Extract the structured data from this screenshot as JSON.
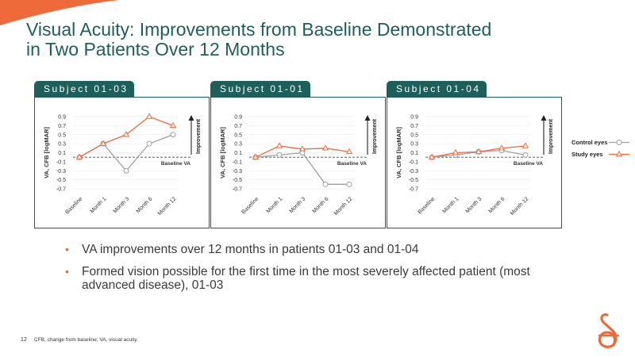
{
  "title_lines": [
    "Visual Acuity: Improvements from Baseline Demonstrated",
    "in Two Patients Over 12 Months"
  ],
  "colors": {
    "brand": "#1d5f5a",
    "accent": "#ef6a3a",
    "control": "#a0a0a0",
    "study": "#ef6a3a"
  },
  "bullets": [
    "VA improvements over 12 months in patients 01-03 and 01-04",
    "Formed vision possible for the first time in the most severely affected patient (most advanced disease), 01-03"
  ],
  "footer": {
    "page_number": "12",
    "note": "CFB, change from baseline; VA, visual acuity."
  },
  "legend": {
    "control": "Control eyes",
    "study": "Study eyes"
  },
  "chart_data": [
    {
      "type": "line",
      "subject": "Subject 01-03",
      "categories": [
        "Baseline",
        "Month 1",
        "Month 3",
        "Month 6",
        "Month 12"
      ],
      "series": [
        {
          "name": "Control eyes",
          "values": [
            0.0,
            0.3,
            -0.3,
            0.3,
            0.5
          ]
        },
        {
          "name": "Study eyes",
          "values": [
            0.0,
            0.3,
            0.5,
            0.9,
            0.7
          ]
        }
      ],
      "yticks": [
        "0.9",
        "0.7",
        "0.5",
        "0.3",
        "0.1",
        "-0.1",
        "-0.3",
        "-0.5",
        "-0.7"
      ],
      "ylim": [
        -0.7,
        0.9
      ],
      "ylabel": "VA, CFB [logMAR]",
      "arrow_label": "Improvement",
      "baseline_label": "Baseline VA"
    },
    {
      "type": "line",
      "subject": "Subject 01-01",
      "categories": [
        "Baseline",
        "Month 1",
        "Month 3",
        "Month 6",
        "Month 12"
      ],
      "series": [
        {
          "name": "Control eyes",
          "values": [
            0.0,
            0.05,
            0.1,
            -0.6,
            -0.6
          ]
        },
        {
          "name": "Study eyes",
          "values": [
            0.0,
            0.25,
            0.18,
            0.2,
            0.12
          ]
        }
      ],
      "yticks": [
        "0.9",
        "0.7",
        "0.5",
        "0.3",
        "0.1",
        "-0.1",
        "-0.3",
        "-0.5",
        "-0.7"
      ],
      "ylim": [
        -0.7,
        0.9
      ],
      "ylabel": "VA, CFB [logMAR]",
      "arrow_label": "Improvement",
      "baseline_label": "Baseline VA"
    },
    {
      "type": "line",
      "subject": "Subject 01-04",
      "categories": [
        "Baseline",
        "Month 1",
        "Month 3",
        "Month 6",
        "Month 12"
      ],
      "series": [
        {
          "name": "Control eyes",
          "values": [
            0.0,
            0.05,
            0.12,
            0.15,
            0.05
          ]
        },
        {
          "name": "Study eyes",
          "values": [
            0.0,
            0.1,
            0.12,
            0.2,
            0.25
          ]
        }
      ],
      "yticks": [
        "0.9",
        "0.7",
        "0.5",
        "0.3",
        "0.1",
        "-0.1",
        "-0.3",
        "-0.5",
        "-0.7"
      ],
      "ylim": [
        -0.7,
        0.9
      ],
      "ylabel": "VA, CFB [logMAR]",
      "arrow_label": "Improvement",
      "baseline_label": "Baseline VA"
    }
  ]
}
